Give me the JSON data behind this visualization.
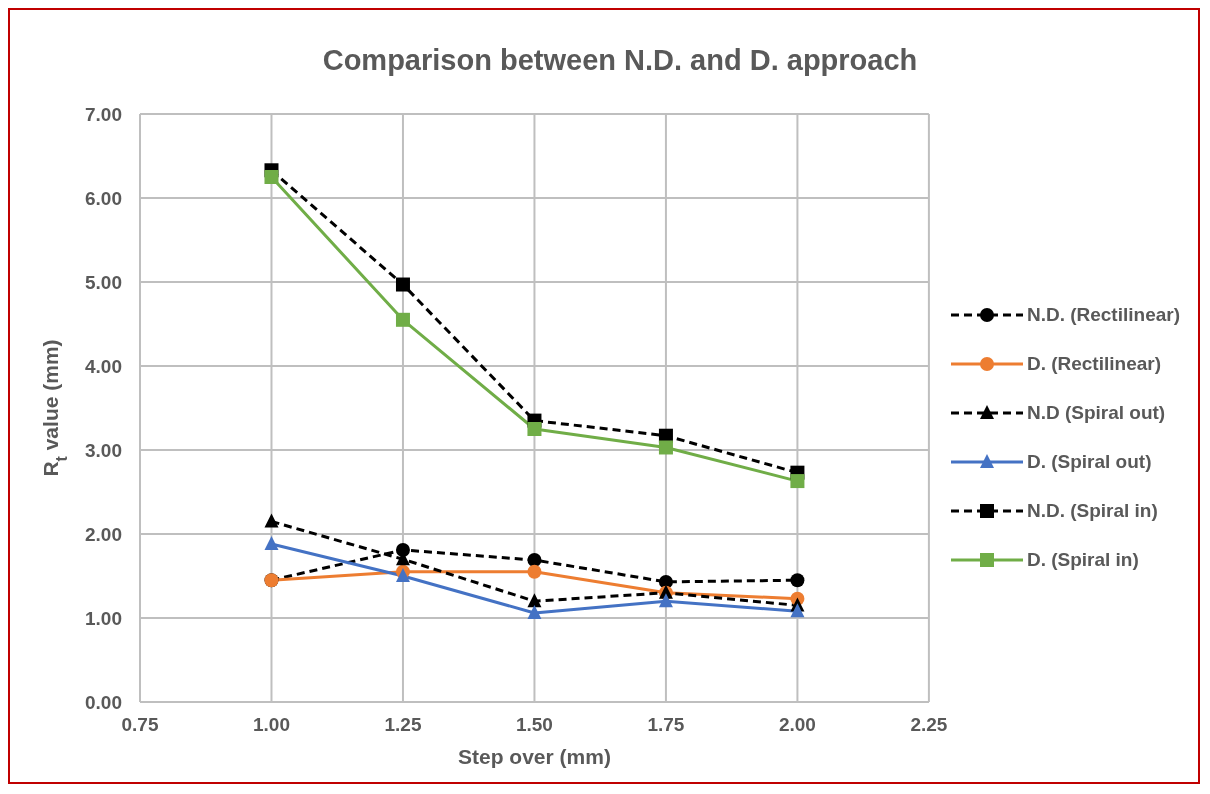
{
  "chart_data": {
    "type": "line",
    "title": "Comparison between N.D. and D. approach",
    "xlabel": "Step over (mm)",
    "ylabel": "R$_{t}$ value (mm)",
    "x": [
      1.0,
      1.25,
      1.5,
      1.75,
      2.0
    ],
    "xlim": [
      0.75,
      2.25
    ],
    "xticks": [
      0.75,
      {
        "value": 1,
        "label": "1.00"
      },
      1.25,
      {
        "value": 1.5,
        "label": "1.50"
      },
      1.75,
      {
        "value": 2,
        "label": "2.00"
      },
      2.25
    ],
    "ylim": [
      0,
      7
    ],
    "yticks": [
      {
        "value": 0,
        "label": "0.00"
      },
      {
        "value": 1,
        "label": "1.00"
      },
      {
        "value": 2,
        "label": "2.00"
      },
      {
        "value": 3,
        "label": "3.00"
      },
      {
        "value": 4,
        "label": "4.00"
      },
      {
        "value": 5,
        "label": "5.00"
      },
      {
        "value": 6,
        "label": "6.00"
      },
      {
        "value": 7,
        "label": "7.00"
      }
    ],
    "grid": true,
    "legend": "right",
    "series": [
      {
        "name": "N.D. (Rectilinear)",
        "color": "#000000",
        "marker": "circle",
        "line_style": "dashed",
        "values": [
          1.45,
          1.81,
          1.69,
          1.43,
          1.45
        ]
      },
      {
        "name": "D. (Rectilinear)",
        "color": "#ed7d31",
        "marker": "circle",
        "line_style": "solid",
        "values": [
          1.45,
          1.55,
          1.55,
          1.3,
          1.23
        ]
      },
      {
        "name": "N.D (Spiral out)",
        "color": "#000000",
        "marker": "triangle",
        "line_style": "dashed",
        "values": [
          2.15,
          1.7,
          1.2,
          1.3,
          1.15
        ]
      },
      {
        "name": "D. (Spiral out)",
        "color": "#4472c4",
        "marker": "triangle",
        "line_style": "solid",
        "values": [
          1.88,
          1.5,
          1.06,
          1.2,
          1.08
        ]
      },
      {
        "name": "N.D. (Spiral in)",
        "color": "#000000",
        "marker": "square",
        "line_style": "dashed",
        "values": [
          6.33,
          4.97,
          3.35,
          3.17,
          2.73
        ]
      },
      {
        "name": "D. (Spiral in)",
        "color": "#70ad47",
        "marker": "square",
        "line_style": "solid",
        "values": [
          6.25,
          4.55,
          3.25,
          3.03,
          2.63
        ]
      }
    ]
  }
}
